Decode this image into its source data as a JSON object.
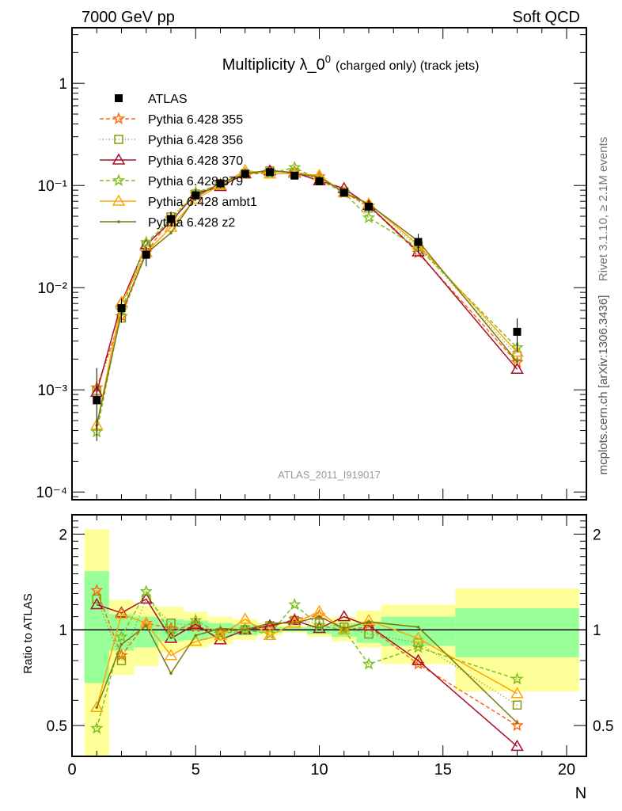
{
  "header": {
    "left": "7000 GeV pp",
    "right": "Soft QCD"
  },
  "side": {
    "rivet": "Rivet 3.1.10, ≥ 2.1M events",
    "mcplots": "mcplots.cern.ch [arXiv:1306.3436]"
  },
  "watermark": "ATLAS_2011_I919017",
  "chart_data": {
    "type": "line",
    "title_main": "Multiplicity λ_0",
    "title_sup": "0",
    "title_rest": "(charged only) (track jets)",
    "xlabel": "N",
    "ylabel_ratio": "Ratio to ATLAS",
    "xlim": [
      0,
      20.8
    ],
    "ylim_main": [
      8.4e-05,
      3.5
    ],
    "ylim_ratio": [
      0.4,
      2.3
    ],
    "yscale": "log",
    "x_ticks": [
      "0",
      "5",
      "10",
      "15",
      "20"
    ],
    "main_y_ticks": [
      {
        "v": 1,
        "label": "1"
      },
      {
        "v": 0.1,
        "label": "10⁻¹"
      },
      {
        "v": 0.01,
        "label": "10⁻²"
      },
      {
        "v": 0.001,
        "label": "10⁻³"
      },
      {
        "v": 0.0001,
        "label": "10⁻⁴"
      }
    ],
    "ratio_y_ticks": [
      {
        "v": 2,
        "label": "2"
      },
      {
        "v": 1,
        "label": "1"
      },
      {
        "v": 0.5,
        "label": "0.5"
      }
    ],
    "legend_position": "top-left",
    "x": [
      1,
      2,
      3,
      4,
      5,
      6,
      7,
      8,
      9,
      10,
      11,
      12,
      14,
      18
    ],
    "bins": [
      [
        0.5,
        1.5
      ],
      [
        1.5,
        2.5
      ],
      [
        2.5,
        3.5
      ],
      [
        3.5,
        4.5
      ],
      [
        4.5,
        5.5
      ],
      [
        5.5,
        6.5
      ],
      [
        6.5,
        7.5
      ],
      [
        7.5,
        8.5
      ],
      [
        8.5,
        9.5
      ],
      [
        9.5,
        10.5
      ],
      [
        10.5,
        11.5
      ],
      [
        11.5,
        12.5
      ],
      [
        12.5,
        15.5
      ],
      [
        15.5,
        20.5
      ]
    ],
    "data": {
      "name": "ATLAS",
      "values": [
        0.00079,
        0.0063,
        0.021,
        0.047,
        0.08,
        0.105,
        0.13,
        0.135,
        0.125,
        0.11,
        0.085,
        0.062,
        0.028,
        0.0037
      ],
      "band_total": [
        [
          0.4,
          2.07
        ],
        [
          0.72,
          1.24
        ],
        [
          0.77,
          1.19
        ],
        [
          0.85,
          1.18
        ],
        [
          0.88,
          1.14
        ],
        [
          0.9,
          1.1
        ],
        [
          0.93,
          1.08
        ],
        [
          0.96,
          1.05
        ],
        [
          0.98,
          1.03
        ],
        [
          0.95,
          1.05
        ],
        [
          0.92,
          1.1
        ],
        [
          0.88,
          1.15
        ],
        [
          0.78,
          1.2
        ],
        [
          0.64,
          1.35
        ]
      ],
      "band_stat": [
        [
          0.68,
          1.53
        ],
        [
          0.86,
          1.12
        ],
        [
          0.88,
          1.1
        ],
        [
          0.92,
          1.08
        ],
        [
          0.93,
          1.07
        ],
        [
          0.95,
          1.05
        ],
        [
          0.96,
          1.04
        ],
        [
          0.98,
          1.02
        ],
        [
          0.99,
          1.02
        ],
        [
          0.97,
          1.03
        ],
        [
          0.95,
          1.05
        ],
        [
          0.91,
          1.06
        ],
        [
          0.89,
          1.1
        ],
        [
          0.82,
          1.17
        ]
      ]
    },
    "series": [
      {
        "name": "Pythia 6.428 355",
        "color": "#ff6a10",
        "dash": "5,3",
        "marker": "star",
        "ratio": [
          1.33,
          0.83,
          1.05,
          1.01,
          1.02,
          0.99,
          1.0,
          1.02,
          1.08,
          1.11,
          1.0,
          1.02,
          0.78,
          0.5
        ]
      },
      {
        "name": "Pythia 6.428 356",
        "color": "#8a9a10",
        "dash": "1,3",
        "marker": "square",
        "ratio": [
          1.25,
          0.8,
          1.25,
          1.05,
          1.03,
          0.98,
          1.0,
          1.03,
          1.07,
          1.05,
          1.02,
          0.97,
          0.91,
          0.58
        ]
      },
      {
        "name": "Pythia 6.428 370",
        "color": "#a8102a",
        "dash": "",
        "marker": "triangle",
        "ratio": [
          1.2,
          1.13,
          1.25,
          0.94,
          1.04,
          0.93,
          1.0,
          1.03,
          1.07,
          1.01,
          1.1,
          1.03,
          0.8,
          0.43
        ]
      },
      {
        "name": "Pythia 6.428 379",
        "color": "#80c020",
        "dash": "5,3",
        "marker": "star",
        "ratio": [
          0.49,
          0.95,
          1.32,
          0.97,
          1.07,
          0.97,
          1.0,
          0.97,
          1.2,
          1.03,
          1.0,
          0.78,
          0.88,
          0.7
        ]
      },
      {
        "name": "Pythia 6.428 ambt1",
        "color": "#ffa500",
        "dash": "",
        "marker": "triangle",
        "ratio": [
          0.57,
          1.12,
          1.05,
          0.83,
          0.92,
          0.96,
          1.08,
          0.96,
          1.05,
          1.14,
          1.0,
          1.07,
          0.94,
          0.63
        ]
      },
      {
        "name": "Pythia 6.428 z2",
        "color": "#7a7a10",
        "dash": "",
        "marker": "dot",
        "ratio": [
          0.57,
          0.9,
          1.03,
          0.73,
          0.96,
          1.01,
          1.0,
          1.05,
          1.05,
          1.1,
          1.01,
          1.06,
          1.02,
          0.51
        ]
      }
    ]
  }
}
